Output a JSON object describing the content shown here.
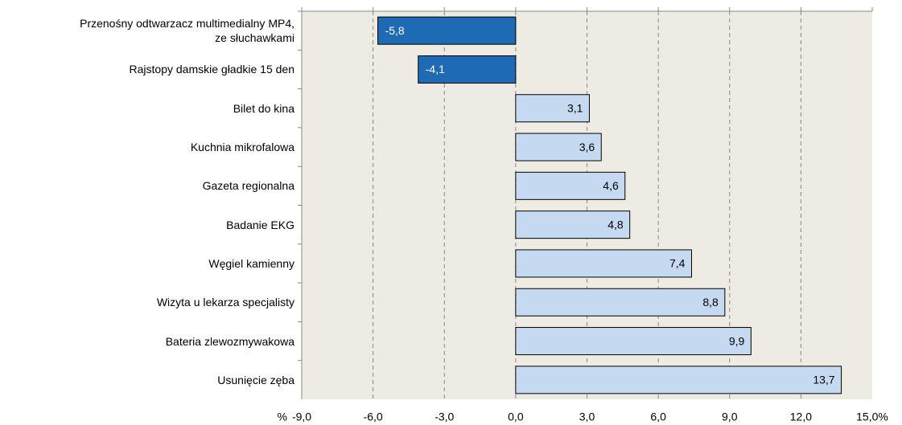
{
  "chart_data": {
    "type": "barh",
    "categories": [
      "Przenośny odtwarzacz multimedialny MP4,\nze słuchawkami",
      "Rajstopy  damskie gładkie 15 den",
      "Bilet do kina",
      "Kuchnia mikrofalowa",
      "Gazeta regionalna",
      "Badanie EKG",
      "Węgiel kamienny",
      "Wizyta u lekarza specjalisty",
      "Bateria zlewozmywakowa",
      "Usunięcie zęba"
    ],
    "values": [
      -5.8,
      -4.1,
      3.1,
      3.6,
      4.6,
      4.8,
      7.4,
      8.8,
      9.9,
      13.7
    ],
    "value_labels": [
      "-5,8",
      "-4,1",
      "3,1",
      "3,6",
      "4,6",
      "4,8",
      "7,4",
      "8,8",
      "9,9",
      "13,7"
    ],
    "colors": [
      "#1f6ab4",
      "#1f6ab4",
      "#c5daf0",
      "#c5daf0",
      "#c5daf0",
      "#c5daf0",
      "#c5daf0",
      "#c5daf0",
      "#c5daf0",
      "#c5daf0"
    ],
    "x_unit": "%",
    "xlim": [
      -9,
      15
    ],
    "xticks": [
      {
        "value": -9,
        "label": "-9,0"
      },
      {
        "value": -6,
        "label": "-6,0"
      },
      {
        "value": -3,
        "label": "-3,0"
      },
      {
        "value": 0,
        "label": "0,0"
      },
      {
        "value": 3,
        "label": "3,0"
      },
      {
        "value": 6,
        "label": "6,0"
      },
      {
        "value": 9,
        "label": "9,0"
      },
      {
        "value": 12,
        "label": "12,0"
      },
      {
        "value": 15,
        "label": "15,0%"
      }
    ],
    "grid": true
  }
}
